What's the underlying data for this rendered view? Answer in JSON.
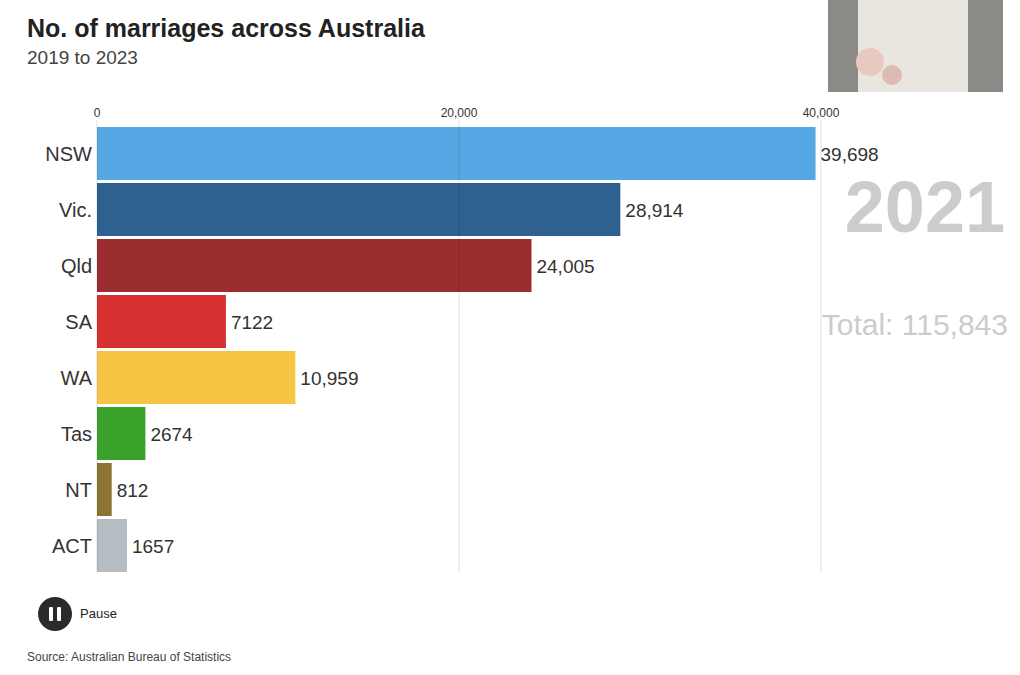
{
  "chart_data": {
    "type": "bar",
    "orientation": "horizontal",
    "title": "No. of marriages across Australia",
    "subtitle": "2019 to 2023",
    "categories": [
      "NSW",
      "Vic.",
      "Qld",
      "SA",
      "WA",
      "Tas",
      "NT",
      "ACT"
    ],
    "values": [
      39698,
      28914,
      24005,
      7122,
      10959,
      2674,
      812,
      1657
    ],
    "value_labels": [
      "39,698",
      "28,914",
      "24,005",
      "7122",
      "10,959",
      "2674",
      "812",
      "1657"
    ],
    "colors": [
      "#55a8e3",
      "#2f6190",
      "#9b2d30",
      "#d63030",
      "#f6c544",
      "#3aa12b",
      "#8d7435",
      "#b5bdc2"
    ],
    "xlim": [
      0,
      40000
    ],
    "xticks": [
      0,
      {
        "value": 20000,
        "label": "20,000"
      },
      {
        "value": 40000,
        "label": "40,000"
      }
    ],
    "grid": true,
    "data_labels": true,
    "annotations": [
      "2021",
      "Total: 115,843"
    ],
    "button_label": "Pause",
    "source": "Source: Australian Bureau of Statistics"
  }
}
